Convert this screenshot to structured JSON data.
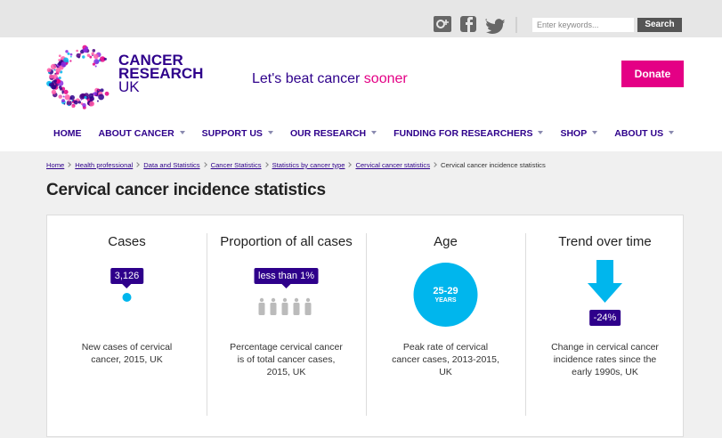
{
  "top_bar": {
    "search_placeholder": "Enter keywords...",
    "search_button": "Search"
  },
  "header": {
    "logo_lines": [
      "CANCER",
      "RESEARCH",
      "UK"
    ],
    "tagline": "Let's beat cancer ",
    "tagline_highlight": "sooner",
    "donate": "Donate"
  },
  "nav": [
    {
      "label": "HOME",
      "dropdown": false
    },
    {
      "label": "ABOUT CANCER",
      "dropdown": true
    },
    {
      "label": "SUPPORT US",
      "dropdown": true
    },
    {
      "label": "OUR RESEARCH",
      "dropdown": true
    },
    {
      "label": "FUNDING FOR RESEARCHERS",
      "dropdown": true
    },
    {
      "label": "SHOP",
      "dropdown": true
    },
    {
      "label": "ABOUT US",
      "dropdown": true
    }
  ],
  "breadcrumbs": {
    "links": [
      "Home",
      "Health professional",
      "Data and Statistics",
      "Cancer Statistics",
      "Statistics by cancer type",
      "Cervical cancer statistics"
    ],
    "current": "Cervical cancer incidence statistics"
  },
  "title": "Cervical cancer incidence statistics",
  "stats": [
    {
      "heading": "Cases",
      "value": "3,126",
      "description": "New cases of cervical cancer, 2015, UK"
    },
    {
      "heading": "Proportion of all cases",
      "value": "less than 1%",
      "description": "Percentage cervical cancer is of total cancer cases, 2015, UK"
    },
    {
      "heading": "Age",
      "value": "25-29",
      "value_unit": "YEARS",
      "description": "Peak rate of cervical cancer cases, 2013-2015, UK"
    },
    {
      "heading": "Trend over time",
      "value": "-24%",
      "description": "Change in cervical cancer incidence rates since the early 1990s, UK"
    }
  ]
}
